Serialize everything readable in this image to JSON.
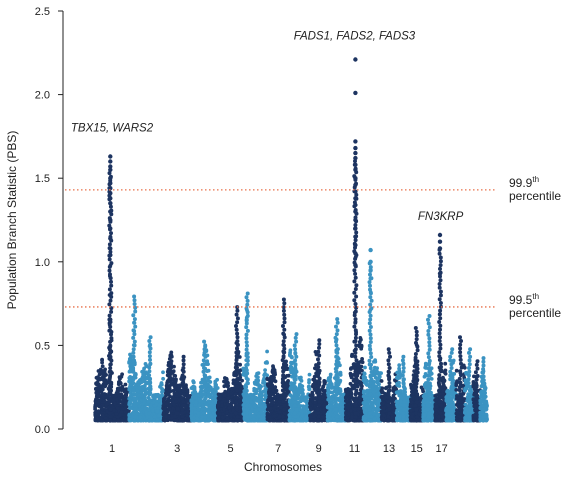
{
  "chart_data": {
    "type": "scatter",
    "title": "",
    "xlabel": "Chromosomes",
    "ylabel": "Population Branch Statistic (PBS)",
    "ylim": [
      0,
      2.5
    ],
    "yticks": [
      "0.0",
      "0.5",
      "1.0",
      "1.5",
      "2.0",
      "2.5"
    ],
    "xtick_labels": [
      "1",
      "3",
      "5",
      "7",
      "9",
      "11",
      "13",
      "15",
      "17"
    ],
    "grid": false,
    "legend": "none",
    "colors": {
      "dark": "#1d3461",
      "light": "#3b93c2",
      "threshold": "#e8704a"
    },
    "thresholds": [
      {
        "value": 1.43,
        "label": "99.9",
        "sup": "th",
        "suffix": "percentile"
      },
      {
        "value": 0.73,
        "label": "99.5",
        "sup": "th",
        "suffix": "percentile"
      }
    ],
    "annotations": [
      {
        "text": "TBX15, WARS2",
        "chromosome": 1,
        "y": 1.78
      },
      {
        "text": "FADS1, FADS2, FADS3",
        "chromosome": 11,
        "y": 2.33
      },
      {
        "text": "FN3KRP",
        "chromosome": 17,
        "y": 1.25
      }
    ],
    "chromosomes": [
      {
        "chr": 1,
        "color": "dark",
        "base_max": 0.45,
        "peaks": [
          {
            "pos": 0.45,
            "max": 1.67
          }
        ],
        "outliers": [
          1.63,
          1.6,
          1.57,
          1.55,
          1.5,
          1.47,
          1.44,
          1.41,
          1.38,
          1.35,
          1.3,
          1.25,
          1.2,
          1.14,
          1.08,
          1.04,
          0.64
        ]
      },
      {
        "chr": 2,
        "color": "light",
        "base_max": 0.45,
        "peaks": [
          {
            "pos": 0.15,
            "max": 0.85
          },
          {
            "pos": 0.6,
            "max": 0.58
          }
        ],
        "outliers": []
      },
      {
        "chr": 3,
        "color": "dark",
        "base_max": 0.43,
        "peaks": [
          {
            "pos": 0.7,
            "max": 0.45
          }
        ],
        "outliers": []
      },
      {
        "chr": 4,
        "color": "light",
        "base_max": 0.45,
        "peaks": [
          {
            "pos": 0.5,
            "max": 0.55
          }
        ],
        "outliers": []
      },
      {
        "chr": 5,
        "color": "dark",
        "base_max": 0.45,
        "peaks": [
          {
            "pos": 0.75,
            "max": 0.78
          }
        ],
        "outliers": []
      },
      {
        "chr": 6,
        "color": "light",
        "base_max": 0.45,
        "peaks": [
          {
            "pos": 0.15,
            "max": 0.87
          }
        ],
        "outliers": []
      },
      {
        "chr": 7,
        "color": "dark",
        "base_max": 0.47,
        "peaks": [
          {
            "pos": 0.75,
            "max": 0.83
          }
        ],
        "outliers": []
      },
      {
        "chr": 8,
        "color": "light",
        "base_max": 0.45,
        "peaks": [
          {
            "pos": 0.3,
            "max": 0.6
          }
        ],
        "outliers": []
      },
      {
        "chr": 9,
        "color": "dark",
        "base_max": 0.42,
        "peaks": [
          {
            "pos": 0.5,
            "max": 0.56
          }
        ],
        "outliers": []
      },
      {
        "chr": 10,
        "color": "light",
        "base_max": 0.45,
        "peaks": [
          {
            "pos": 0.5,
            "max": 0.7
          }
        ],
        "outliers": []
      },
      {
        "chr": 11,
        "color": "dark",
        "base_max": 0.55,
        "peaks": [
          {
            "pos": 0.55,
            "max": 1.75
          }
        ],
        "outliers": [
          2.21,
          2.01,
          1.72,
          1.68,
          1.65,
          1.62,
          1.58,
          1.55,
          1.5,
          1.46,
          1.42,
          1.38,
          1.34,
          1.3,
          1.25,
          1.2,
          1.15,
          1.1,
          1.05,
          0.98
        ]
      },
      {
        "chr": 12,
        "color": "light",
        "base_max": 0.5,
        "peaks": [
          {
            "pos": 0.4,
            "max": 1.07
          }
        ],
        "outliers": [
          1.07,
          1.0,
          0.95,
          0.9
        ]
      },
      {
        "chr": 13,
        "color": "dark",
        "base_max": 0.38,
        "peaks": [
          {
            "pos": 0.5,
            "max": 0.5
          }
        ],
        "outliers": []
      },
      {
        "chr": 14,
        "color": "light",
        "base_max": 0.38,
        "peaks": [
          {
            "pos": 0.5,
            "max": 0.45
          }
        ],
        "outliers": []
      },
      {
        "chr": 15,
        "color": "dark",
        "base_max": 0.4,
        "peaks": [
          {
            "pos": 0.5,
            "max": 0.64
          }
        ],
        "outliers": []
      },
      {
        "chr": 16,
        "color": "light",
        "base_max": 0.45,
        "peaks": [
          {
            "pos": 0.5,
            "max": 0.72
          }
        ],
        "outliers": []
      },
      {
        "chr": 17,
        "color": "dark",
        "base_max": 0.45,
        "peaks": [
          {
            "pos": 0.45,
            "max": 1.16
          }
        ],
        "outliers": [
          1.16,
          1.12,
          1.08,
          0.93
        ]
      },
      {
        "chr": 18,
        "color": "light",
        "base_max": 0.4,
        "peaks": [
          {
            "pos": 0.5,
            "max": 0.5
          }
        ],
        "outliers": []
      },
      {
        "chr": 19,
        "color": "dark",
        "base_max": 0.4,
        "peaks": [
          {
            "pos": 0.5,
            "max": 0.58
          }
        ],
        "outliers": []
      },
      {
        "chr": 20,
        "color": "light",
        "base_max": 0.38,
        "peaks": [
          {
            "pos": 0.5,
            "max": 0.5
          }
        ],
        "outliers": []
      },
      {
        "chr": 21,
        "color": "dark",
        "base_max": 0.35,
        "peaks": [
          {
            "pos": 0.5,
            "max": 0.42
          }
        ],
        "outliers": []
      },
      {
        "chr": 22,
        "color": "light",
        "base_max": 0.35,
        "peaks": [
          {
            "pos": 0.5,
            "max": 0.44
          }
        ],
        "outliers": []
      }
    ]
  }
}
